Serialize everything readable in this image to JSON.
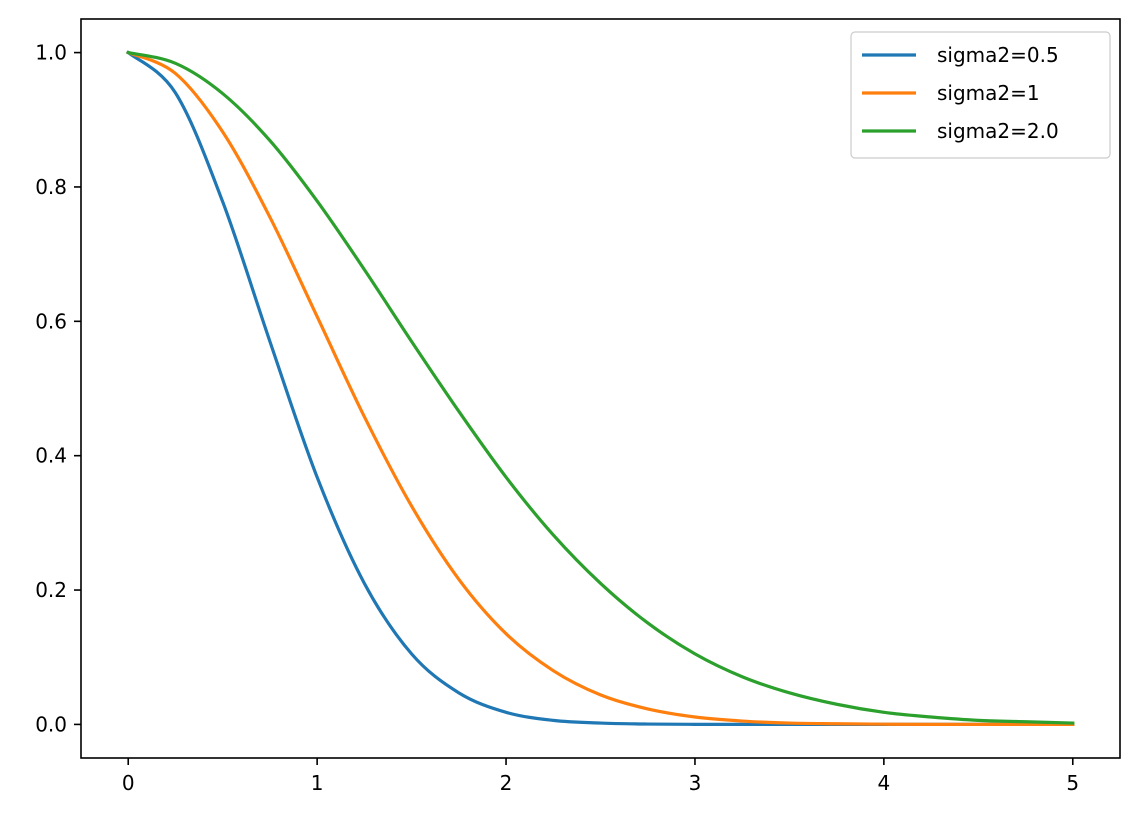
{
  "chart_data": {
    "type": "line",
    "title": "",
    "xlabel": "",
    "ylabel": "",
    "xlim": [
      -0.25,
      5.25
    ],
    "ylim": [
      -0.05,
      1.05
    ],
    "grid": false,
    "legend_position": "top-right",
    "x_ticks": [
      0,
      1,
      2,
      3,
      4,
      5
    ],
    "x_tick_labels": [
      "0",
      "1",
      "2",
      "3",
      "4",
      "5"
    ],
    "y_ticks": [
      0.0,
      0.2,
      0.4,
      0.6,
      0.8,
      1.0
    ],
    "y_tick_labels": [
      "0.0",
      "0.2",
      "0.4",
      "0.6",
      "0.8",
      "1.0"
    ],
    "x": [
      0,
      0.25,
      0.5,
      0.75,
      1,
      1.25,
      1.5,
      1.75,
      2,
      2.25,
      2.5,
      2.75,
      3,
      3.25,
      3.5,
      3.75,
      4,
      4.25,
      4.5,
      4.75,
      5
    ],
    "series": [
      {
        "name": "sigma2=0.5",
        "color": "#1f77b4",
        "values": [
          1.0,
          0.94,
          0.778,
          0.57,
          0.368,
          0.21,
          0.105,
          0.047,
          0.018,
          0.006,
          0.002,
          0.0005,
          0.0001,
          0.0,
          0.0,
          0.0,
          0.0,
          0.0,
          0.0,
          0.0,
          0.0
        ]
      },
      {
        "name": "sigma2=1",
        "color": "#ff7f0e",
        "values": [
          1.0,
          0.969,
          0.882,
          0.755,
          0.607,
          0.458,
          0.325,
          0.216,
          0.135,
          0.08,
          0.044,
          0.023,
          0.011,
          0.005,
          0.002,
          0.001,
          0.0003,
          0.0001,
          0.0,
          0.0,
          0.0
        ]
      },
      {
        "name": "sigma2=2.0",
        "color": "#2ca02c",
        "values": [
          1.0,
          0.984,
          0.939,
          0.869,
          0.779,
          0.677,
          0.57,
          0.466,
          0.368,
          0.282,
          0.21,
          0.151,
          0.105,
          0.071,
          0.047,
          0.03,
          0.018,
          0.011,
          0.006,
          0.004,
          0.002
        ]
      }
    ]
  }
}
